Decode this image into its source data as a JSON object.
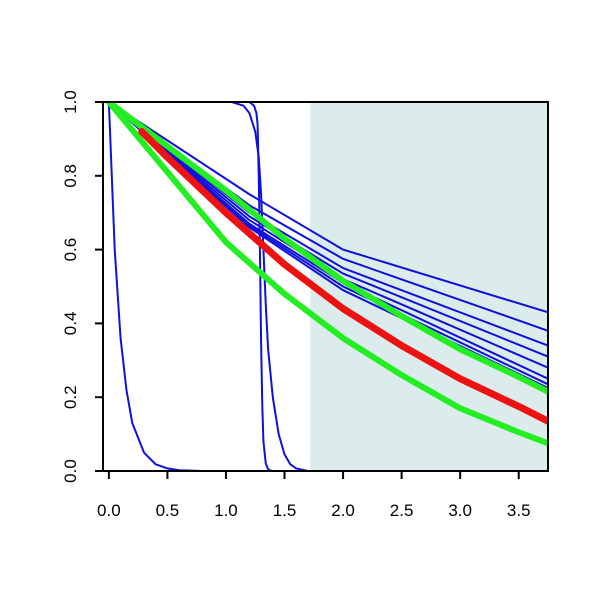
{
  "chart_data": {
    "type": "line",
    "title": "",
    "xlabel": "",
    "ylabel": "",
    "xlim": [
      -0.05,
      3.75
    ],
    "ylim": [
      0,
      1.0
    ],
    "x_ticks": [
      "0.0",
      "0.5",
      "1.0",
      "1.5",
      "2.0",
      "2.5",
      "3.0",
      "3.5"
    ],
    "x_tick_values": [
      0,
      0.5,
      1,
      1.5,
      2,
      2.5,
      3,
      3.5
    ],
    "y_ticks": [
      "0.0",
      "0.2",
      "0.4",
      "0.6",
      "0.8",
      "1.0"
    ],
    "y_tick_values": [
      0,
      0.2,
      0.4,
      0.6,
      0.8,
      1.0
    ],
    "grid": false,
    "shaded_region": {
      "x_from": 1.72,
      "x_to": 3.75,
      "color": "#dcebeb"
    },
    "series": [
      {
        "color": "#1010dd",
        "width": 2,
        "x": [
          0,
          0.05,
          0.1,
          0.15,
          0.2,
          0.3,
          0.4,
          0.5,
          0.6,
          0.8,
          1.0,
          3.75
        ],
        "y": [
          1.0,
          0.6,
          0.36,
          0.22,
          0.13,
          0.05,
          0.018,
          0.007,
          0.002,
          0,
          0,
          0
        ]
      },
      {
        "color": "#1010dd",
        "width": 2,
        "x": [
          0,
          1.2,
          1.24,
          1.26,
          1.27,
          1.28,
          1.29,
          1.3,
          1.31,
          1.32,
          1.34,
          1.36,
          1.38,
          1.4,
          3.75
        ],
        "y": [
          1.0,
          1.0,
          0.99,
          0.97,
          0.94,
          0.8,
          0.6,
          0.35,
          0.18,
          0.08,
          0.02,
          0.005,
          0.001,
          0,
          0
        ]
      },
      {
        "color": "#1010dd",
        "width": 2,
        "x": [
          0,
          1.05,
          1.15,
          1.2,
          1.25,
          1.28,
          1.3,
          1.32,
          1.34,
          1.36,
          1.4,
          1.45,
          1.5,
          1.55,
          1.6,
          1.7,
          3.75
        ],
        "y": [
          1.0,
          1.0,
          0.99,
          0.97,
          0.92,
          0.85,
          0.75,
          0.6,
          0.45,
          0.33,
          0.2,
          0.1,
          0.045,
          0.018,
          0.007,
          0,
          0
        ]
      },
      {
        "color": "#1010dd",
        "width": 2,
        "x": [
          0,
          1.2,
          2.0,
          3.75
        ],
        "y": [
          1.0,
          0.75,
          0.6,
          0.43
        ]
      },
      {
        "color": "#1010dd",
        "width": 2,
        "x": [
          0,
          1.2,
          2.0,
          3.75
        ],
        "y": [
          1.0,
          0.72,
          0.575,
          0.38
        ]
      },
      {
        "color": "#1010dd",
        "width": 2,
        "x": [
          0,
          1.2,
          2.0,
          3.75
        ],
        "y": [
          1.0,
          0.7,
          0.55,
          0.34
        ]
      },
      {
        "color": "#1010dd",
        "width": 2,
        "x": [
          0,
          1.2,
          2.0,
          3.75
        ],
        "y": [
          1.0,
          0.69,
          0.535,
          0.31
        ]
      },
      {
        "color": "#1010dd",
        "width": 2,
        "x": [
          0,
          1.2,
          2.0,
          3.75
        ],
        "y": [
          1.0,
          0.68,
          0.52,
          0.28
        ]
      },
      {
        "color": "#1010dd",
        "width": 2,
        "x": [
          0,
          1.2,
          2.0,
          3.75
        ],
        "y": [
          1.0,
          0.67,
          0.51,
          0.25
        ]
      },
      {
        "color": "#1010dd",
        "width": 2,
        "x": [
          0,
          1.2,
          2.0,
          3.75
        ],
        "y": [
          1.0,
          0.665,
          0.5,
          0.235
        ]
      },
      {
        "color": "#1010dd",
        "width": 2,
        "x": [
          0,
          1.2,
          2.0,
          3.75
        ],
        "y": [
          1.0,
          0.66,
          0.49,
          0.225
        ]
      },
      {
        "color": "#22ee22",
        "width": 6,
        "x": [
          0,
          0.5,
          1.0,
          1.5,
          2.0,
          2.5,
          3.0,
          3.5,
          3.75
        ],
        "y": [
          1.0,
          0.88,
          0.76,
          0.63,
          0.515,
          0.42,
          0.33,
          0.255,
          0.215
        ]
      },
      {
        "color": "#22ee22",
        "width": 6,
        "x": [
          0,
          0.5,
          1.0,
          1.5,
          2.0,
          2.5,
          3.0,
          3.5,
          3.75
        ],
        "y": [
          1.0,
          0.81,
          0.62,
          0.48,
          0.36,
          0.26,
          0.17,
          0.105,
          0.075
        ]
      },
      {
        "color": "#ee1111",
        "width": 7,
        "x": [
          0.28,
          0.5,
          1.0,
          1.5,
          2.0,
          2.5,
          3.0,
          3.5,
          3.75
        ],
        "y": [
          0.92,
          0.85,
          0.7,
          0.56,
          0.44,
          0.34,
          0.25,
          0.175,
          0.135
        ]
      }
    ]
  }
}
